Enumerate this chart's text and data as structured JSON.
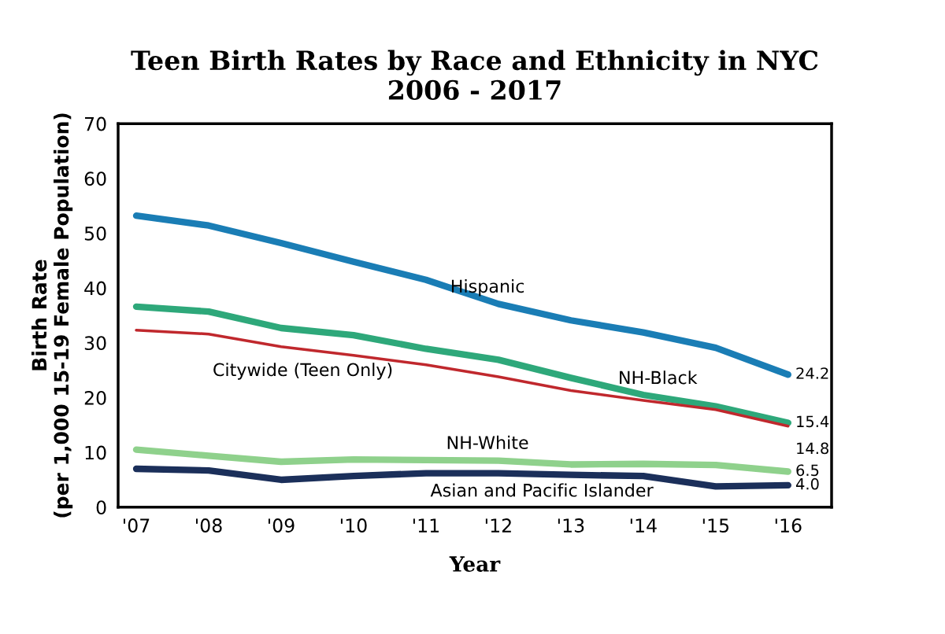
{
  "chart_data": {
    "type": "line",
    "title": "Teen Birth Rates by Race and Ethnicity in NYC\n2006 - 2017",
    "xlabel": "Year",
    "ylabel": "Birth Rate\n(per 1,000 15-19 Female Population)",
    "categories": [
      "'07",
      "'08",
      "'09",
      "'10",
      "'11",
      "'12",
      "'13",
      "'14",
      "'15",
      "'16"
    ],
    "ylim": [
      0,
      70
    ],
    "yticks": [
      0,
      10,
      20,
      30,
      40,
      50,
      60,
      70
    ],
    "grid": false,
    "legend": false,
    "marker": "none",
    "line_style": "solid",
    "series": [
      {
        "name": "Hispanic",
        "color": "#1a7db5",
        "values": [
          53.2,
          51.4,
          48.2,
          44.8,
          41.5,
          37.1,
          34.1,
          31.9,
          29.1,
          24.2
        ],
        "value_labels": [
          null,
          null,
          null,
          null,
          null,
          null,
          null,
          null,
          null,
          "24.2"
        ]
      },
      {
        "name": "NH-Black",
        "color": "#2ea87a",
        "values": [
          36.6,
          35.7,
          32.7,
          31.4,
          28.9,
          26.9,
          23.6,
          20.5,
          18.4,
          15.4
        ],
        "value_labels": [
          null,
          null,
          null,
          null,
          null,
          null,
          null,
          null,
          null,
          "15.4"
        ]
      },
      {
        "name": "Citywide (Teen Only)",
        "color": "#c0282d",
        "values": [
          32.3,
          31.6,
          29.3,
          27.7,
          26.0,
          23.8,
          21.3,
          19.5,
          17.8,
          14.8
        ],
        "value_labels": [
          null,
          null,
          null,
          null,
          null,
          null,
          null,
          null,
          null,
          "14.8"
        ]
      },
      {
        "name": "NH-White",
        "color": "#8fd18c",
        "values": [
          10.5,
          9.4,
          8.3,
          8.7,
          8.6,
          8.5,
          7.8,
          7.9,
          7.7,
          6.5
        ],
        "value_labels": [
          null,
          null,
          null,
          null,
          null,
          null,
          null,
          null,
          null,
          "6.5"
        ]
      },
      {
        "name": "Asian and Pacific Islander",
        "color": "#1b2f5a",
        "values": [
          7.0,
          6.7,
          5.0,
          5.7,
          6.2,
          6.2,
          5.9,
          5.7,
          3.8,
          4.0
        ],
        "value_labels": [
          null,
          null,
          null,
          null,
          null,
          null,
          null,
          null,
          null,
          "4.0"
        ]
      }
    ]
  }
}
